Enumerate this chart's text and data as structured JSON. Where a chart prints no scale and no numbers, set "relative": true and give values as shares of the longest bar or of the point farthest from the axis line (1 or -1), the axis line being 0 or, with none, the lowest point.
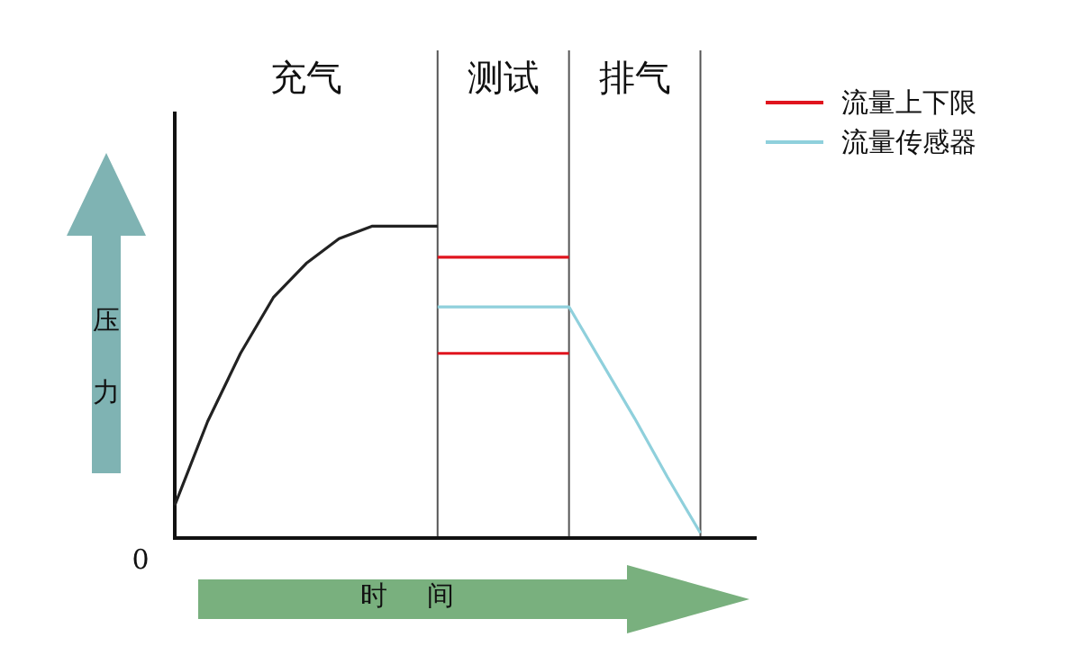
{
  "chart_data": {
    "type": "line",
    "relative": true,
    "xlabel": "时间",
    "ylabel": "压力",
    "tick_labels": false,
    "grid": "x",
    "legend": "top right",
    "marker": "none",
    "line_style": "solid",
    "categories": [
      null,
      null,
      null,
      null,
      null,
      null,
      null,
      null,
      null,
      null,
      null,
      null,
      null,
      null,
      null,
      null,
      null,
      null
    ],
    "annotations": [
      "充气",
      "测试",
      "排气",
      "0"
    ],
    "series": [
      {
        "color": "#222222",
        "values": [
          0.1,
          0.37,
          0.59,
          0.77,
          0.88,
          0.96,
          1,
          1,
          1,
          null,
          null,
          null,
          null,
          null,
          null,
          null,
          null,
          null
        ]
      },
      {
        "name": "流量上下限",
        "color": "#e0141e",
        "values": [
          null,
          null,
          null,
          null,
          null,
          null,
          null,
          null,
          0.9,
          0.9,
          0.9,
          0.9,
          0.9,
          null,
          null,
          null,
          null,
          null
        ]
      },
      {
        "color": "#e0141e",
        "values": [
          null,
          null,
          null,
          null,
          null,
          null,
          null,
          null,
          0.59,
          0.59,
          0.59,
          0.59,
          0.59,
          null,
          null,
          null,
          null,
          null
        ]
      },
      {
        "name": "流量传感器",
        "color": "#8fd0dc",
        "values": [
          null,
          null,
          null,
          null,
          null,
          null,
          null,
          null,
          0.74,
          0.74,
          0.74,
          0.74,
          0.74,
          0.56,
          0.38,
          0.19,
          0.01,
          null
        ]
      }
    ]
  }
}
